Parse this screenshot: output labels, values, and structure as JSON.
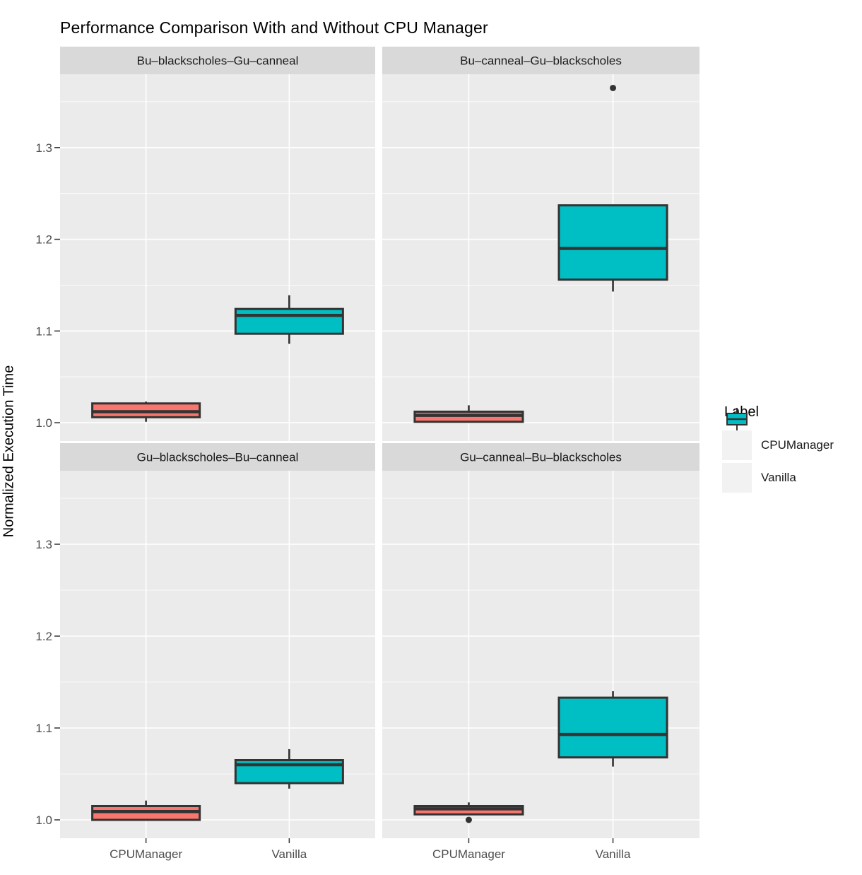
{
  "title": "Performance Comparison With and Without CPU Manager",
  "y_axis": {
    "label": "Normalized Execution Time",
    "tick_labels": [
      "1.0",
      "1.1",
      "1.2",
      "1.3"
    ]
  },
  "x_axis": {
    "categories": [
      "CPUManager",
      "Vanilla"
    ]
  },
  "legend": {
    "title": "Label",
    "entries": [
      {
        "label": "CPUManager",
        "color": "#F8766D"
      },
      {
        "label": "Vanilla",
        "color": "#00BFC4"
      }
    ]
  },
  "colors": {
    "cpumanager_fill": "#F8766D",
    "vanilla_fill": "#00BFC4",
    "box_stroke": "#333333",
    "panel_bg": "#EBEBEB",
    "strip_bg": "#D9D9D9",
    "grid": "#FFFFFF",
    "tick_text": "#4D4D4D",
    "strip_text": "#1A1A1A",
    "outlier": "#333333"
  },
  "chart_data": {
    "type": "boxplot",
    "title": "Performance Comparison With and Without CPU Manager",
    "ylabel": "Normalized Execution Time",
    "xlabel": "",
    "ylim": [
      0.98,
      1.38
    ],
    "yticks": [
      1.0,
      1.1,
      1.2,
      1.3
    ],
    "minor_yticks": [
      1.05,
      1.15,
      1.25,
      1.35
    ],
    "grid": "on",
    "legend_position": "right",
    "categories": [
      "CPUManager",
      "Vanilla"
    ],
    "series_colors": {
      "CPUManager": "#F8766D",
      "Vanilla": "#00BFC4"
    },
    "facets": [
      {
        "label": "Bu–blackscholes–Gu–canneal",
        "row": 0,
        "col": 0,
        "boxes": [
          {
            "category": "CPUManager",
            "min": 1.001,
            "q1": 1.006,
            "median": 1.012,
            "q3": 1.021,
            "max": 1.023,
            "outliers": []
          },
          {
            "category": "Vanilla",
            "min": 1.086,
            "q1": 1.097,
            "median": 1.117,
            "q3": 1.124,
            "max": 1.139,
            "outliers": []
          }
        ]
      },
      {
        "label": "Bu–canneal–Gu–blackscholes",
        "row": 0,
        "col": 1,
        "boxes": [
          {
            "category": "CPUManager",
            "min": 1.0,
            "q1": 1.001,
            "median": 1.008,
            "q3": 1.012,
            "max": 1.019,
            "outliers": []
          },
          {
            "category": "Vanilla",
            "min": 1.143,
            "q1": 1.156,
            "median": 1.19,
            "q3": 1.237,
            "max": 1.237,
            "outliers": [
              1.365
            ]
          }
        ]
      },
      {
        "label": "Gu–blackscholes–Bu–canneal",
        "row": 1,
        "col": 0,
        "boxes": [
          {
            "category": "CPUManager",
            "min": 1.0,
            "q1": 1.0,
            "median": 1.009,
            "q3": 1.015,
            "max": 1.021,
            "outliers": []
          },
          {
            "category": "Vanilla",
            "min": 1.034,
            "q1": 1.04,
            "median": 1.06,
            "q3": 1.065,
            "max": 1.077,
            "outliers": []
          }
        ]
      },
      {
        "label": "Gu–canneal–Bu–blackscholes",
        "row": 1,
        "col": 1,
        "boxes": [
          {
            "category": "CPUManager",
            "min": 1.006,
            "q1": 1.006,
            "median": 1.012,
            "q3": 1.015,
            "max": 1.019,
            "outliers": [
              1.0
            ]
          },
          {
            "category": "Vanilla",
            "min": 1.058,
            "q1": 1.068,
            "median": 1.093,
            "q3": 1.133,
            "max": 1.14,
            "outliers": []
          }
        ]
      }
    ]
  }
}
